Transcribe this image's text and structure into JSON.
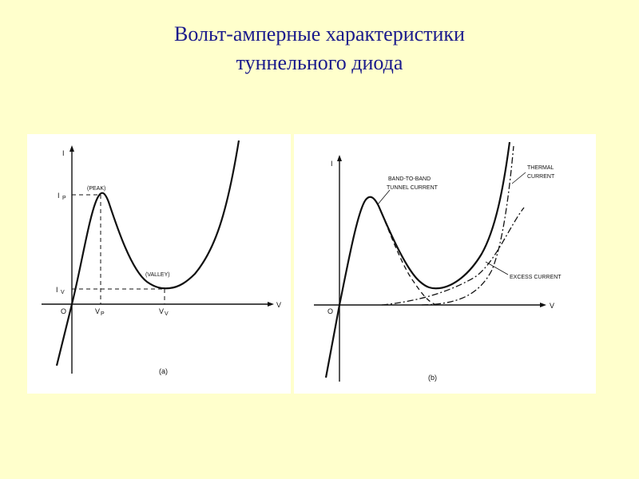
{
  "slide": {
    "title_line1": "Вольт-амперные характеристики",
    "title_line2": "туннельного диода",
    "title_color": "#1a1a8c",
    "background": "#ffffcc"
  },
  "figure_a": {
    "caption": "(a)",
    "axis_y": "I",
    "axis_x": "V",
    "origin": "O",
    "peak_label": "(PEAK)",
    "valley_label": "(VALLEY)",
    "ip_main": "I",
    "ip_sub": "P",
    "iv_main": "I",
    "iv_sub": "V",
    "vp_main": "V",
    "vp_sub": "P",
    "vv_main": "V",
    "vv_sub": "V"
  },
  "figure_b": {
    "caption": "(b)",
    "axis_y": "I",
    "axis_x": "V",
    "origin": "O",
    "tunnel_label_1": "BAND-TO-BAND",
    "tunnel_label_2": "TUNNEL CURRENT",
    "thermal_label_1": "THERMAL",
    "thermal_label_2": "CURRENT",
    "excess_label": "EXCESS CURRENT"
  }
}
